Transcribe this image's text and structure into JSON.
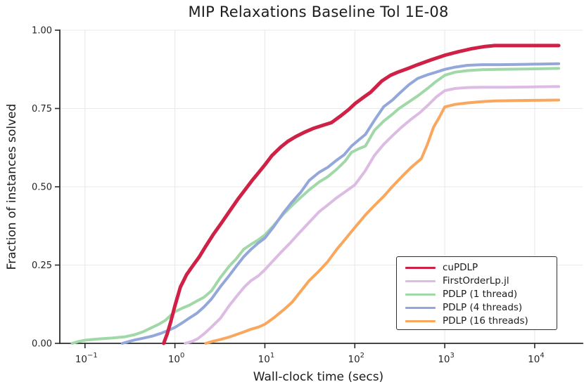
{
  "title": "MIP Relaxations Baseline Tol 1E-08",
  "colors": {
    "background": "#ffffff",
    "grid": "#e9e9e9",
    "spine": "#2b2b2b",
    "tick_text": "#262626",
    "legend_border": "#2f2f2f"
  },
  "chart_data": {
    "type": "line",
    "title": "MIP Relaxations Baseline Tol 1E-08",
    "xlabel": "Wall-clock time (secs)",
    "ylabel": "Fraction of instances solved",
    "grid": true,
    "legend_position": "lower right",
    "x_axis": {
      "scale": "log10",
      "tick_exponents": [
        -1,
        0,
        1,
        2,
        3,
        4
      ],
      "range_exponents": [
        -1.28,
        4.47
      ]
    },
    "y_axis": {
      "ticks": [
        0,
        0.25,
        0.5,
        0.75,
        1.0
      ],
      "tick_labels": [
        "0.00",
        "0.25",
        "0.50",
        "0.75",
        "1.00"
      ],
      "range": [
        0,
        1.0
      ]
    },
    "series": [
      {
        "name": "cuPDLP",
        "color": "#cf2146",
        "points": [
          [
            0.75,
            0
          ],
          [
            0.82,
            0.03
          ],
          [
            0.9,
            0.07
          ],
          [
            1.0,
            0.12
          ],
          [
            1.15,
            0.18
          ],
          [
            1.35,
            0.22
          ],
          [
            1.6,
            0.25
          ],
          [
            1.85,
            0.275
          ],
          [
            2.2,
            0.31
          ],
          [
            2.7,
            0.35
          ],
          [
            3.3,
            0.385
          ],
          [
            4.0,
            0.42
          ],
          [
            5.0,
            0.46
          ],
          [
            6.0,
            0.49
          ],
          [
            7.2,
            0.52
          ],
          [
            8.5,
            0.545
          ],
          [
            10,
            0.57
          ],
          [
            12,
            0.6
          ],
          [
            15,
            0.627
          ],
          [
            18,
            0.645
          ],
          [
            22,
            0.66
          ],
          [
            28,
            0.675
          ],
          [
            35,
            0.687
          ],
          [
            45,
            0.697
          ],
          [
            55,
            0.705
          ],
          [
            70,
            0.727
          ],
          [
            85,
            0.746
          ],
          [
            100,
            0.765
          ],
          [
            120,
            0.782
          ],
          [
            150,
            0.802
          ],
          [
            200,
            0.838
          ],
          [
            250,
            0.856
          ],
          [
            300,
            0.866
          ],
          [
            400,
            0.879
          ],
          [
            500,
            0.89
          ],
          [
            700,
            0.905
          ],
          [
            1000,
            0.92
          ],
          [
            1400,
            0.931
          ],
          [
            2000,
            0.941
          ],
          [
            2800,
            0.948
          ],
          [
            3600,
            0.951
          ],
          [
            6000,
            0.951
          ],
          [
            12000,
            0.951
          ],
          [
            18500,
            0.951
          ]
        ]
      },
      {
        "name": "FirstOrderLp.jl",
        "color": "#dcbce3",
        "points": [
          [
            1.3,
            0
          ],
          [
            1.55,
            0.006
          ],
          [
            1.8,
            0.015
          ],
          [
            2.1,
            0.03
          ],
          [
            2.5,
            0.05
          ],
          [
            3.2,
            0.08
          ],
          [
            4.0,
            0.12
          ],
          [
            5.0,
            0.155
          ],
          [
            6.0,
            0.182
          ],
          [
            7.0,
            0.2
          ],
          [
            8.5,
            0.216
          ],
          [
            10,
            0.235
          ],
          [
            12,
            0.26
          ],
          [
            15,
            0.29
          ],
          [
            19,
            0.32
          ],
          [
            24,
            0.352
          ],
          [
            31,
            0.386
          ],
          [
            40,
            0.42
          ],
          [
            50,
            0.442
          ],
          [
            63,
            0.465
          ],
          [
            80,
            0.486
          ],
          [
            100,
            0.506
          ],
          [
            130,
            0.55
          ],
          [
            165,
            0.6
          ],
          [
            210,
            0.636
          ],
          [
            260,
            0.662
          ],
          [
            330,
            0.69
          ],
          [
            420,
            0.715
          ],
          [
            530,
            0.737
          ],
          [
            660,
            0.762
          ],
          [
            800,
            0.786
          ],
          [
            1000,
            0.807
          ],
          [
            1300,
            0.814
          ],
          [
            1800,
            0.817
          ],
          [
            2600,
            0.818
          ],
          [
            5000,
            0.818
          ],
          [
            10000,
            0.819
          ],
          [
            18500,
            0.82
          ]
        ]
      },
      {
        "name": "PDLP (1 thread)",
        "color": "#a0d8a8",
        "points": [
          [
            0.072,
            0
          ],
          [
            0.085,
            0.006
          ],
          [
            0.1,
            0.01
          ],
          [
            0.14,
            0.014
          ],
          [
            0.2,
            0.017
          ],
          [
            0.28,
            0.021
          ],
          [
            0.36,
            0.028
          ],
          [
            0.45,
            0.038
          ],
          [
            0.55,
            0.05
          ],
          [
            0.66,
            0.061
          ],
          [
            0.78,
            0.073
          ],
          [
            0.9,
            0.09
          ],
          [
            1.0,
            0.101
          ],
          [
            1.2,
            0.112
          ],
          [
            1.45,
            0.122
          ],
          [
            1.75,
            0.135
          ],
          [
            2.1,
            0.147
          ],
          [
            2.55,
            0.168
          ],
          [
            3.2,
            0.21
          ],
          [
            4.0,
            0.246
          ],
          [
            4.8,
            0.27
          ],
          [
            5.8,
            0.3
          ],
          [
            7.0,
            0.316
          ],
          [
            8.5,
            0.331
          ],
          [
            10,
            0.346
          ],
          [
            12.5,
            0.376
          ],
          [
            16,
            0.412
          ],
          [
            20,
            0.44
          ],
          [
            25,
            0.466
          ],
          [
            31,
            0.49
          ],
          [
            40,
            0.515
          ],
          [
            50,
            0.532
          ],
          [
            63,
            0.556
          ],
          [
            78,
            0.582
          ],
          [
            92,
            0.61
          ],
          [
            110,
            0.621
          ],
          [
            131,
            0.63
          ],
          [
            165,
            0.68
          ],
          [
            210,
            0.71
          ],
          [
            260,
            0.731
          ],
          [
            310,
            0.75
          ],
          [
            400,
            0.771
          ],
          [
            500,
            0.79
          ],
          [
            650,
            0.815
          ],
          [
            800,
            0.836
          ],
          [
            1000,
            0.856
          ],
          [
            1300,
            0.866
          ],
          [
            1800,
            0.871
          ],
          [
            2600,
            0.874
          ],
          [
            4000,
            0.875
          ],
          [
            8000,
            0.876
          ],
          [
            18500,
            0.878
          ]
        ]
      },
      {
        "name": "PDLP (4 threads)",
        "color": "#93a7db",
        "points": [
          [
            0.26,
            0
          ],
          [
            0.3,
            0.005
          ],
          [
            0.36,
            0.011
          ],
          [
            0.45,
            0.017
          ],
          [
            0.56,
            0.023
          ],
          [
            0.7,
            0.032
          ],
          [
            0.85,
            0.042
          ],
          [
            1.0,
            0.051
          ],
          [
            1.2,
            0.065
          ],
          [
            1.45,
            0.081
          ],
          [
            1.75,
            0.096
          ],
          [
            2.1,
            0.116
          ],
          [
            2.55,
            0.142
          ],
          [
            3.2,
            0.181
          ],
          [
            4.0,
            0.216
          ],
          [
            4.8,
            0.246
          ],
          [
            5.8,
            0.276
          ],
          [
            7.0,
            0.3
          ],
          [
            8.5,
            0.321
          ],
          [
            10,
            0.336
          ],
          [
            12.5,
            0.372
          ],
          [
            16,
            0.416
          ],
          [
            20,
            0.451
          ],
          [
            25,
            0.482
          ],
          [
            31,
            0.52
          ],
          [
            40,
            0.546
          ],
          [
            50,
            0.562
          ],
          [
            61,
            0.582
          ],
          [
            76,
            0.602
          ],
          [
            92,
            0.63
          ],
          [
            110,
            0.649
          ],
          [
            131,
            0.667
          ],
          [
            165,
            0.712
          ],
          [
            210,
            0.756
          ],
          [
            260,
            0.776
          ],
          [
            310,
            0.797
          ],
          [
            400,
            0.826
          ],
          [
            500,
            0.846
          ],
          [
            650,
            0.858
          ],
          [
            800,
            0.866
          ],
          [
            1000,
            0.875
          ],
          [
            1300,
            0.882
          ],
          [
            1800,
            0.888
          ],
          [
            2600,
            0.89
          ],
          [
            4000,
            0.89
          ],
          [
            8000,
            0.891
          ],
          [
            18500,
            0.893
          ]
        ]
      },
      {
        "name": "PDLP (16 threads)",
        "color": "#faa75e",
        "points": [
          [
            2.2,
            0
          ],
          [
            2.6,
            0.006
          ],
          [
            3.2,
            0.012
          ],
          [
            4.0,
            0.02
          ],
          [
            4.8,
            0.028
          ],
          [
            5.8,
            0.036
          ],
          [
            7.0,
            0.045
          ],
          [
            8.5,
            0.052
          ],
          [
            10,
            0.061
          ],
          [
            12.5,
            0.081
          ],
          [
            16,
            0.106
          ],
          [
            20,
            0.131
          ],
          [
            25,
            0.166
          ],
          [
            31,
            0.2
          ],
          [
            40,
            0.231
          ],
          [
            50,
            0.261
          ],
          [
            63,
            0.3
          ],
          [
            80,
            0.336
          ],
          [
            100,
            0.37
          ],
          [
            131,
            0.41
          ],
          [
            165,
            0.44
          ],
          [
            210,
            0.47
          ],
          [
            260,
            0.5
          ],
          [
            330,
            0.531
          ],
          [
            420,
            0.561
          ],
          [
            550,
            0.59
          ],
          [
            650,
            0.64
          ],
          [
            750,
            0.69
          ],
          [
            870,
            0.722
          ],
          [
            1000,
            0.755
          ],
          [
            1300,
            0.763
          ],
          [
            1800,
            0.768
          ],
          [
            2600,
            0.772
          ],
          [
            3600,
            0.774
          ],
          [
            6000,
            0.775
          ],
          [
            10000,
            0.776
          ],
          [
            18500,
            0.777
          ]
        ]
      }
    ]
  }
}
